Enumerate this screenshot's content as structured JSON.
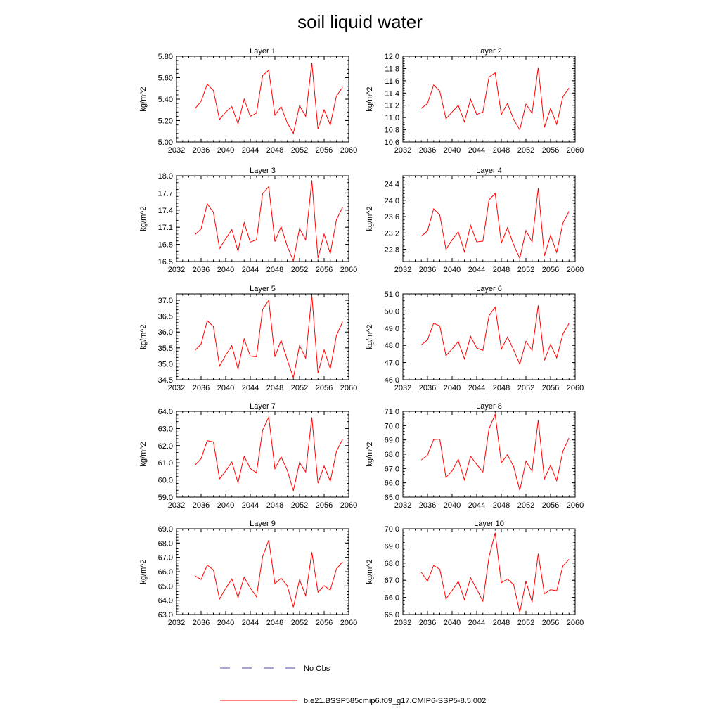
{
  "title": "soil liquid water",
  "legend": {
    "placement": "bottom",
    "entries": [
      {
        "label": "No Obs",
        "color": "#4a4ab0",
        "style": "dashed"
      },
      {
        "label": "b.e21.BSSP585cmip6.f09_g17.CMIP6-SSP5-8.5.002",
        "color": "#ff0000",
        "style": "solid"
      }
    ]
  },
  "chart_data": [
    {
      "type": "line",
      "title": "Layer 1",
      "ylabel": "kg/m^2",
      "xlim": [
        2032,
        2060
      ],
      "xticks": [
        2032,
        2036,
        2040,
        2044,
        2048,
        2052,
        2056,
        2060
      ],
      "ylim": [
        5.0,
        5.8
      ],
      "yticks": [
        "5.00",
        "5.20",
        "5.40",
        "5.60",
        "5.80"
      ],
      "x": [
        2035,
        2036,
        2037,
        2038,
        2039,
        2040,
        2041,
        2042,
        2043,
        2044,
        2045,
        2046,
        2047,
        2048,
        2049,
        2050,
        2051,
        2052,
        2053,
        2054,
        2055,
        2056,
        2057,
        2058,
        2059
      ],
      "series": [
        {
          "name": "b.e21.BSSP585cmip6.f09_g17.CMIP6-SSP5-8.5.002",
          "color": "#ff0000",
          "values": [
            5.31,
            5.38,
            5.54,
            5.48,
            5.21,
            5.28,
            5.33,
            5.17,
            5.4,
            5.24,
            5.27,
            5.62,
            5.67,
            5.25,
            5.33,
            5.18,
            5.08,
            5.34,
            5.24,
            5.74,
            5.12,
            5.3,
            5.16,
            5.43,
            5.51
          ]
        }
      ]
    },
    {
      "type": "line",
      "title": "Layer 2",
      "ylabel": "kg/m^2",
      "xlim": [
        2032,
        2060
      ],
      "xticks": [
        2032,
        2036,
        2040,
        2044,
        2048,
        2052,
        2056,
        2060
      ],
      "ylim": [
        10.6,
        12.0
      ],
      "yticks": [
        "10.6",
        "10.8",
        "11.0",
        "11.2",
        "11.4",
        "11.6",
        "11.8",
        "12.0"
      ],
      "x": [
        2035,
        2036,
        2037,
        2038,
        2039,
        2040,
        2041,
        2042,
        2043,
        2044,
        2045,
        2046,
        2047,
        2048,
        2049,
        2050,
        2051,
        2052,
        2053,
        2054,
        2055,
        2056,
        2057,
        2058,
        2059
      ],
      "series": [
        {
          "name": "b.e21.BSSP585cmip6.f09_g17.CMIP6-SSP5-8.5.002",
          "color": "#ff0000",
          "values": [
            11.15,
            11.23,
            11.53,
            11.43,
            10.98,
            11.09,
            11.2,
            10.93,
            11.3,
            11.05,
            11.09,
            11.66,
            11.73,
            11.05,
            11.23,
            10.97,
            10.8,
            11.22,
            11.07,
            11.82,
            10.84,
            11.15,
            10.89,
            11.34,
            11.48
          ]
        }
      ]
    },
    {
      "type": "line",
      "title": "Layer 3",
      "ylabel": "kg/m^2",
      "xlim": [
        2032,
        2060
      ],
      "xticks": [
        2032,
        2036,
        2040,
        2044,
        2048,
        2052,
        2056,
        2060
      ],
      "ylim": [
        16.5,
        18.0
      ],
      "yticks": [
        "16.5",
        "16.8",
        "17.1",
        "17.4",
        "17.7",
        "18.0"
      ],
      "x": [
        2035,
        2036,
        2037,
        2038,
        2039,
        2040,
        2041,
        2042,
        2043,
        2044,
        2045,
        2046,
        2047,
        2048,
        2049,
        2050,
        2051,
        2052,
        2053,
        2054,
        2055,
        2056,
        2057,
        2058,
        2059
      ],
      "series": [
        {
          "name": "b.e21.BSSP585cmip6.f09_g17.CMIP6-SSP5-8.5.002",
          "color": "#ff0000",
          "values": [
            16.97,
            17.07,
            17.51,
            17.36,
            16.73,
            16.9,
            17.06,
            16.68,
            17.18,
            16.84,
            16.88,
            17.69,
            17.81,
            16.85,
            17.11,
            16.77,
            16.51,
            17.08,
            16.88,
            17.92,
            16.56,
            16.98,
            16.64,
            17.23,
            17.45
          ]
        }
      ]
    },
    {
      "type": "line",
      "title": "Layer 4",
      "ylabel": "kg/m^2",
      "xlim": [
        2032,
        2060
      ],
      "xticks": [
        2032,
        2036,
        2040,
        2044,
        2048,
        2052,
        2056,
        2060
      ],
      "ylim": [
        22.5,
        24.6
      ],
      "yticks": [
        "22.8",
        "23.2",
        "23.6",
        "24.0",
        "24.4"
      ],
      "x": [
        2035,
        2036,
        2037,
        2038,
        2039,
        2040,
        2041,
        2042,
        2043,
        2044,
        2045,
        2046,
        2047,
        2048,
        2049,
        2050,
        2051,
        2052,
        2053,
        2054,
        2055,
        2056,
        2057,
        2058,
        2059
      ],
      "series": [
        {
          "name": "b.e21.BSSP585cmip6.f09_g17.CMIP6-SSP5-8.5.002",
          "color": "#ff0000",
          "values": [
            23.12,
            23.25,
            23.79,
            23.64,
            22.8,
            23.03,
            23.23,
            22.74,
            23.39,
            22.98,
            23.0,
            24.01,
            24.17,
            22.95,
            23.33,
            22.91,
            22.58,
            23.26,
            22.98,
            24.3,
            22.64,
            23.14,
            22.72,
            23.44,
            23.73
          ]
        }
      ]
    },
    {
      "type": "line",
      "title": "Layer 5",
      "ylabel": "kg/m^2",
      "xlim": [
        2032,
        2060
      ],
      "xticks": [
        2032,
        2036,
        2040,
        2044,
        2048,
        2052,
        2056,
        2060
      ],
      "ylim": [
        34.5,
        37.2
      ],
      "yticks": [
        "34.5",
        "35.0",
        "35.5",
        "36.0",
        "36.5",
        "37.0"
      ],
      "x": [
        2035,
        2036,
        2037,
        2038,
        2039,
        2040,
        2041,
        2042,
        2043,
        2044,
        2045,
        2046,
        2047,
        2048,
        2049,
        2050,
        2051,
        2052,
        2053,
        2054,
        2055,
        2056,
        2057,
        2058,
        2059
      ],
      "series": [
        {
          "name": "b.e21.BSSP585cmip6.f09_g17.CMIP6-SSP5-8.5.002",
          "color": "#ff0000",
          "values": [
            35.42,
            35.62,
            36.36,
            36.17,
            34.93,
            35.27,
            35.57,
            34.83,
            35.79,
            35.24,
            35.22,
            36.71,
            37.0,
            35.22,
            35.74,
            35.13,
            34.56,
            35.58,
            35.18,
            37.16,
            34.71,
            35.44,
            34.84,
            35.89,
            36.32
          ]
        }
      ]
    },
    {
      "type": "line",
      "title": "Layer 6",
      "ylabel": "kg/m^2",
      "xlim": [
        2032,
        2060
      ],
      "xticks": [
        2032,
        2036,
        2040,
        2044,
        2048,
        2052,
        2056,
        2060
      ],
      "ylim": [
        46.0,
        51.0
      ],
      "yticks": [
        "46.0",
        "47.0",
        "48.0",
        "49.0",
        "50.0",
        "51.0"
      ],
      "x": [
        2035,
        2036,
        2037,
        2038,
        2039,
        2040,
        2041,
        2042,
        2043,
        2044,
        2045,
        2046,
        2047,
        2048,
        2049,
        2050,
        2051,
        2052,
        2053,
        2054,
        2055,
        2056,
        2057,
        2058,
        2059
      ],
      "series": [
        {
          "name": "b.e21.BSSP585cmip6.f09_g17.CMIP6-SSP5-8.5.002",
          "color": "#ff0000",
          "values": [
            48.03,
            48.32,
            49.29,
            49.13,
            47.4,
            47.79,
            48.23,
            47.21,
            48.53,
            47.84,
            47.71,
            49.73,
            50.23,
            47.78,
            48.49,
            47.74,
            46.9,
            48.24,
            47.71,
            50.33,
            47.12,
            48.06,
            47.27,
            48.66,
            49.28
          ]
        }
      ]
    },
    {
      "type": "line",
      "title": "Layer 7",
      "ylabel": "kg/m^2",
      "xlim": [
        2032,
        2060
      ],
      "xticks": [
        2032,
        2036,
        2040,
        2044,
        2048,
        2052,
        2056,
        2060
      ],
      "ylim": [
        59.0,
        64.0
      ],
      "yticks": [
        "59.0",
        "60.0",
        "61.0",
        "62.0",
        "63.0",
        "64.0"
      ],
      "x": [
        2035,
        2036,
        2037,
        2038,
        2039,
        2040,
        2041,
        2042,
        2043,
        2044,
        2045,
        2046,
        2047,
        2048,
        2049,
        2050,
        2051,
        2052,
        2053,
        2054,
        2055,
        2056,
        2057,
        2058,
        2059
      ],
      "series": [
        {
          "name": "b.e21.BSSP585cmip6.f09_g17.CMIP6-SSP5-8.5.002",
          "color": "#ff0000",
          "values": [
            60.86,
            61.24,
            62.29,
            62.22,
            60.07,
            60.52,
            61.05,
            59.84,
            61.38,
            60.67,
            60.42,
            62.91,
            63.66,
            60.65,
            61.35,
            60.57,
            59.38,
            61.02,
            60.47,
            63.65,
            59.81,
            60.81,
            59.92,
            61.66,
            62.37
          ]
        }
      ]
    },
    {
      "type": "line",
      "title": "Layer 8",
      "ylabel": "kg/m^2",
      "xlim": [
        2032,
        2060
      ],
      "xticks": [
        2032,
        2036,
        2040,
        2044,
        2048,
        2052,
        2056,
        2060
      ],
      "ylim": [
        65.0,
        71.0
      ],
      "yticks": [
        "65.0",
        "66.0",
        "67.0",
        "68.0",
        "69.0",
        "70.0",
        "71.0"
      ],
      "x": [
        2035,
        2036,
        2037,
        2038,
        2039,
        2040,
        2041,
        2042,
        2043,
        2044,
        2045,
        2046,
        2047,
        2048,
        2049,
        2050,
        2051,
        2052,
        2053,
        2054,
        2055,
        2056,
        2057,
        2058,
        2059
      ],
      "series": [
        {
          "name": "b.e21.BSSP585cmip6.f09_g17.CMIP6-SSP5-8.5.002",
          "color": "#ff0000",
          "values": [
            67.6,
            67.94,
            69.02,
            69.06,
            66.37,
            66.84,
            67.65,
            66.21,
            67.86,
            67.29,
            66.76,
            69.79,
            70.79,
            67.4,
            67.98,
            67.14,
            65.47,
            67.52,
            66.82,
            70.39,
            66.27,
            67.23,
            66.14,
            68.2,
            69.13
          ]
        }
      ]
    },
    {
      "type": "line",
      "title": "Layer 9",
      "ylabel": "kg/m^2",
      "xlim": [
        2032,
        2060
      ],
      "xticks": [
        2032,
        2036,
        2040,
        2044,
        2048,
        2052,
        2056,
        2060
      ],
      "ylim": [
        63.0,
        69.0
      ],
      "yticks": [
        "63.0",
        "64.0",
        "65.0",
        "66.0",
        "67.0",
        "68.0",
        "69.0"
      ],
      "x": [
        2035,
        2036,
        2037,
        2038,
        2039,
        2040,
        2041,
        2042,
        2043,
        2044,
        2045,
        2046,
        2047,
        2048,
        2049,
        2050,
        2051,
        2052,
        2053,
        2054,
        2055,
        2056,
        2057,
        2058,
        2059
      ],
      "series": [
        {
          "name": "b.e21.BSSP585cmip6.f09_g17.CMIP6-SSP5-8.5.002",
          "color": "#ff0000",
          "values": [
            65.71,
            65.45,
            66.46,
            66.12,
            64.09,
            64.83,
            65.49,
            64.19,
            65.61,
            64.86,
            64.24,
            67.04,
            68.21,
            65.16,
            65.54,
            65.02,
            63.52,
            65.44,
            64.32,
            67.36,
            64.56,
            65.02,
            64.71,
            66.19,
            66.69
          ]
        }
      ]
    },
    {
      "type": "line",
      "title": "Layer 10",
      "ylabel": "kg/m^2",
      "xlim": [
        2032,
        2060
      ],
      "xticks": [
        2032,
        2036,
        2040,
        2044,
        2048,
        2052,
        2056,
        2060
      ],
      "ylim": [
        65.0,
        70.0
      ],
      "yticks": [
        "65.0",
        "66.0",
        "67.0",
        "68.0",
        "69.0",
        "70.0"
      ],
      "x": [
        2035,
        2036,
        2037,
        2038,
        2039,
        2040,
        2041,
        2042,
        2043,
        2044,
        2045,
        2046,
        2047,
        2048,
        2049,
        2050,
        2051,
        2052,
        2053,
        2054,
        2055,
        2056,
        2057,
        2058,
        2059
      ],
      "series": [
        {
          "name": "b.e21.BSSP585cmip6.f09_g17.CMIP6-SSP5-8.5.002",
          "color": "#ff0000",
          "values": [
            67.46,
            66.95,
            67.86,
            67.64,
            65.91,
            66.4,
            66.93,
            65.87,
            67.15,
            66.48,
            65.78,
            68.36,
            69.76,
            66.85,
            67.07,
            66.74,
            65.13,
            66.95,
            65.72,
            68.55,
            66.21,
            66.45,
            66.39,
            67.83,
            68.22
          ]
        }
      ]
    }
  ]
}
